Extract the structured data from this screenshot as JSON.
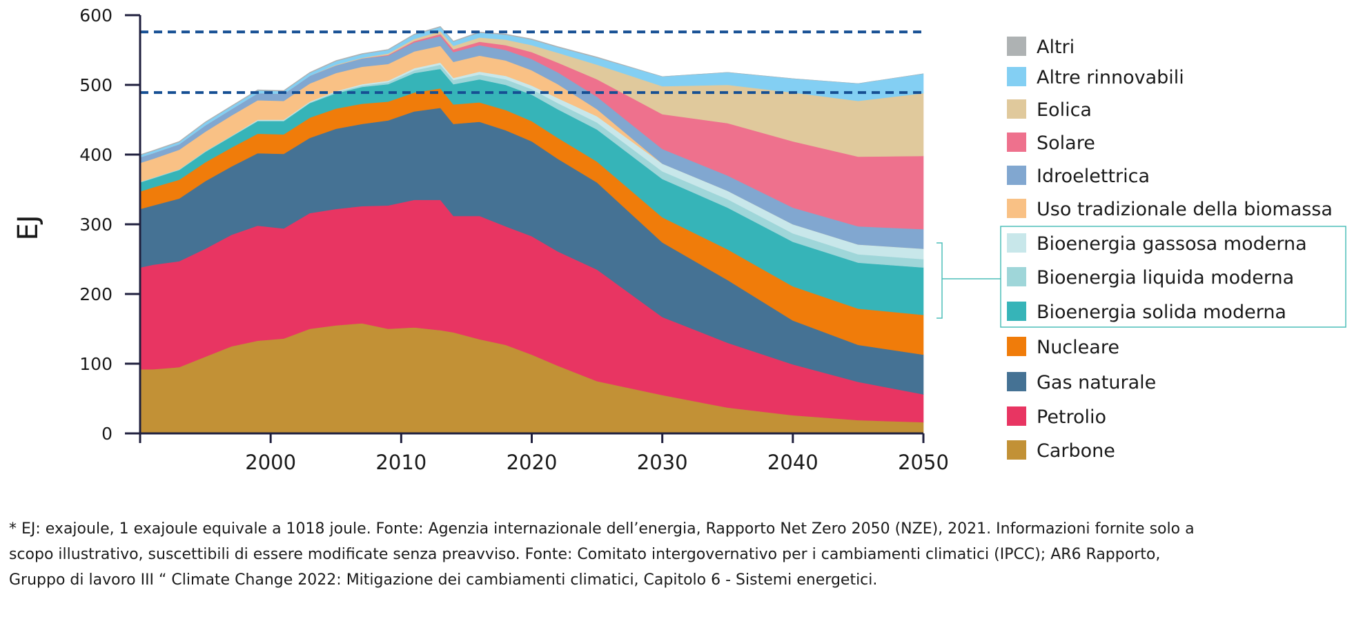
{
  "chart_data": {
    "type": "area",
    "stacked": true,
    "ylabel": "EJ",
    "xlabel": "",
    "xlim": [
      1990,
      2050
    ],
    "ylim": [
      0,
      600
    ],
    "x_ticks": [
      2000,
      2010,
      2020,
      2030,
      2040,
      2050
    ],
    "y_ticks": [
      0,
      100,
      200,
      300,
      400,
      500,
      600
    ],
    "reference_lines": [
      576,
      489
    ],
    "grid": false,
    "legend_position": "right",
    "bracket_group": [
      "Bioenergia gassosa moderna",
      "Bioenergia liquida moderna",
      "Bioenergia solida moderna"
    ],
    "x": [
      1990,
      1991,
      1993,
      1995,
      1997,
      1999,
      2001,
      2003,
      2005,
      2007,
      2009,
      2011,
      2013,
      2014,
      2016,
      2018,
      2020,
      2022,
      2025,
      2030,
      2035,
      2040,
      2045,
      2050
    ],
    "series": [
      {
        "name": "Carbone",
        "color": "#c29136",
        "values": [
          92,
          92,
          95,
          110,
          125,
          133,
          136,
          150,
          155,
          158,
          150,
          152,
          148,
          145,
          135,
          127,
          113,
          97,
          75,
          55,
          37,
          26,
          19,
          16
        ]
      },
      {
        "name": "Petrolio",
        "color": "#e83562",
        "values": [
          146,
          150,
          152,
          155,
          160,
          165,
          158,
          166,
          167,
          168,
          177,
          183,
          187,
          167,
          177,
          170,
          170,
          164,
          160,
          112,
          93,
          73,
          55,
          40
        ]
      },
      {
        "name": "Gas naturale",
        "color": "#457294",
        "values": [
          84,
          85,
          90,
          97,
          98,
          104,
          107,
          108,
          115,
          118,
          122,
          127,
          132,
          132,
          135,
          138,
          136,
          133,
          125,
          107,
          90,
          63,
          53,
          57
        ]
      },
      {
        "name": "Nucleare",
        "color": "#f07c0a",
        "values": [
          25,
          26,
          27,
          27,
          27,
          28,
          28,
          29,
          29,
          29,
          27,
          27,
          28,
          28,
          28,
          29,
          29,
          30,
          30,
          36,
          44,
          49,
          52,
          57
        ]
      },
      {
        "name": "Bioenergia solida moderna",
        "color": "#36b4b8",
        "values": [
          13,
          13,
          14,
          15,
          16,
          18,
          19,
          21,
          22,
          24,
          25,
          28,
          28,
          29,
          33,
          36,
          38,
          41,
          46,
          55,
          60,
          64,
          66,
          68
        ]
      },
      {
        "name": "Bioenergia liquida moderna",
        "color": "#9fd6d9",
        "values": [
          1,
          1,
          1,
          1,
          1,
          1,
          1,
          1,
          2,
          2,
          3,
          4,
          6,
          6,
          7,
          8,
          8,
          9,
          10,
          11,
          12,
          12,
          12,
          12
        ]
      },
      {
        "name": "Bioenergia gassosa moderna",
        "color": "#c8e7ea",
        "values": [
          0,
          0,
          0,
          0,
          0,
          1,
          1,
          1,
          1,
          2,
          2,
          3,
          3,
          3,
          4,
          5,
          5,
          7,
          9,
          11,
          12,
          13,
          14,
          15
        ]
      },
      {
        "name": "Uso tradizionale della biomassa",
        "color": "#f9c185",
        "values": [
          27,
          27,
          28,
          28,
          29,
          28,
          27,
          26,
          26,
          25,
          24,
          24,
          24,
          23,
          23,
          22,
          22,
          20,
          10,
          0,
          0,
          0,
          0,
          0
        ]
      },
      {
        "name": "Idroelettrica",
        "color": "#81a7d0",
        "values": [
          8,
          8,
          8,
          9,
          9,
          10,
          10,
          11,
          11,
          12,
          12,
          13,
          14,
          14,
          15,
          15,
          16,
          17,
          18,
          21,
          22,
          24,
          26,
          28
        ]
      },
      {
        "name": "Solare",
        "color": "#ee718d",
        "values": [
          0,
          0,
          0,
          0,
          0,
          0,
          0,
          0,
          0,
          0,
          1,
          2,
          3,
          4,
          5,
          7,
          10,
          14,
          25,
          50,
          75,
          95,
          100,
          105
        ]
      },
      {
        "name": "Eolica",
        "color": "#e0c99c",
        "values": [
          0,
          0,
          0,
          0,
          0,
          0,
          0,
          0,
          1,
          1,
          2,
          3,
          4,
          5,
          6,
          8,
          10,
          14,
          21,
          40,
          55,
          70,
          80,
          90
        ]
      },
      {
        "name": "Altre rinnovabili",
        "color": "#83cff3",
        "values": [
          3,
          3,
          3,
          4,
          4,
          4,
          4,
          4,
          5,
          5,
          5,
          6,
          6,
          6,
          7,
          7,
          8,
          8,
          10,
          14,
          18,
          20,
          25,
          28
        ]
      },
      {
        "name": "Altri",
        "color": "#aeb2b3",
        "values": [
          1,
          1,
          1,
          1,
          1,
          1,
          1,
          1,
          1,
          1,
          1,
          1,
          1,
          1,
          1,
          1,
          1,
          1,
          1,
          0,
          0,
          0,
          0,
          0
        ]
      }
    ],
    "legend_order": [
      "Altri",
      "Altre rinnovabili",
      "Eolica",
      "Solare",
      "Idroelettrica",
      "Uso tradizionale della biomassa",
      "Bioenergia gassosa moderna",
      "Bioenergia liquida moderna",
      "Bioenergia solida moderna",
      "Nucleare",
      "Gas naturale",
      "Petrolio",
      "Carbone"
    ]
  },
  "colors": {
    "axis": "#1f1f3d",
    "reference_line": "#164f93",
    "bracket": "#4bbdb8",
    "text": "#1a1a1a"
  },
  "footnote": {
    "line1": "* EJ: exajoule, 1 exajoule equivale a 1018 joule. Fonte: Agenzia internazionale dell’energia, Rapporto Net Zero 2050 (NZE), 2021. Informazioni fornite solo a",
    "line2": "scopo illustrativo, suscettibili di essere modificate senza preavviso. Fonte: Comitato intergovernativo per i cambiamenti climatici (IPCC); AR6 Rapporto,",
    "line3": "Gruppo di lavoro III “ Climate Change 2022: Mitigazione dei cambiamenti climatici, Capitolo 6 - Sistemi energetici."
  }
}
